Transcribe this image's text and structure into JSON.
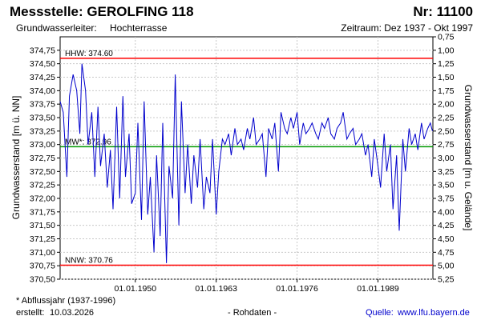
{
  "header": {
    "station": "Messstelle: GEROLFING 118",
    "number": "Nr: 11100",
    "aquifer_label": "Grundwasserleiter:",
    "aquifer": "Hochterrasse",
    "period": "Zeitraum: Dez 1937 - Okt 1997"
  },
  "footer": {
    "note": "* Abflussjahr (1937-1996)",
    "created_label": "erstellt:",
    "created": "10.03.2026",
    "raw": "- Rohdaten -",
    "source_label": "Quelle:",
    "source": "www.lfu.bayern.de"
  },
  "colors": {
    "series": "#0000cc",
    "extreme_lines": "#ff0000",
    "mean_line": "#009900",
    "grid": "#c8c8c8"
  },
  "chart_data": {
    "type": "line",
    "ylabel": "Grundwasserstand [m ü. NN]",
    "y2label": "Grundwasserstand [m u. Gelände]",
    "ylim": [
      370.5,
      375.0
    ],
    "y2lim": [
      0.75,
      5.25
    ],
    "yticks": [
      "374,75",
      "374,50",
      "374,25",
      "374,00",
      "373,75",
      "373,50",
      "373,25",
      "373,00",
      "372,75",
      "372,50",
      "372,25",
      "372,00",
      "371,75",
      "371,50",
      "371,25",
      "371,00",
      "370,75",
      "370,50"
    ],
    "y2ticks": [
      "0,75",
      "1,00",
      "1,25",
      "1,50",
      "1,75",
      "2,00",
      "2,25",
      "2,50",
      "2,75",
      "3,00",
      "3,25",
      "3,50",
      "3,75",
      "4,00",
      "4,25",
      "4,50",
      "4,75",
      "5,00",
      "5,25"
    ],
    "xlim": [
      "1937-12-01",
      "1997-10-31"
    ],
    "xticks": [
      "01.01.1950",
      "01.01.1963",
      "01.01.1976",
      "01.01.1989"
    ],
    "grid": true,
    "hlines": [
      {
        "label": "HHW: 374.60",
        "value": 374.6,
        "color": "#ff0000"
      },
      {
        "label": "MW*: 372.96",
        "value": 372.96,
        "color": "#009900"
      },
      {
        "label": "NNW: 370.76",
        "value": 370.76,
        "color": "#ff0000"
      }
    ],
    "series": [
      {
        "x": [
          "1937-12",
          "1938-06",
          "1939-01",
          "1939-06",
          "1940-01",
          "1940-08",
          "1941-02",
          "1941-06",
          "1942-01",
          "1942-06",
          "1943-01",
          "1943-07",
          "1944-01",
          "1944-06",
          "1945-01",
          "1945-07",
          "1946-01",
          "1946-06",
          "1947-01",
          "1947-07",
          "1948-01",
          "1948-06",
          "1949-01",
          "1949-06",
          "1950-01",
          "1950-06",
          "1951-01",
          "1951-06",
          "1952-01",
          "1952-06",
          "1953-01",
          "1953-06",
          "1954-01",
          "1954-06",
          "1955-01",
          "1955-06",
          "1956-01",
          "1956-06",
          "1957-01",
          "1957-06",
          "1958-01",
          "1958-06",
          "1959-01",
          "1959-06",
          "1960-01",
          "1960-06",
          "1961-01",
          "1961-06",
          "1962-01",
          "1962-06",
          "1963-01",
          "1963-06",
          "1964-01",
          "1964-06",
          "1965-01",
          "1965-06",
          "1966-01",
          "1966-06",
          "1967-01",
          "1967-06",
          "1968-01",
          "1968-06",
          "1969-01",
          "1969-06",
          "1970-01",
          "1970-06",
          "1971-01",
          "1971-06",
          "1972-01",
          "1972-06",
          "1973-01",
          "1973-06",
          "1974-01",
          "1974-06",
          "1975-01",
          "1975-06",
          "1976-01",
          "1976-06",
          "1977-01",
          "1977-06",
          "1978-01",
          "1978-06",
          "1979-01",
          "1979-06",
          "1980-01",
          "1980-06",
          "1981-01",
          "1981-06",
          "1982-01",
          "1982-06",
          "1983-01",
          "1983-06",
          "1984-01",
          "1984-06",
          "1985-01",
          "1985-06",
          "1986-01",
          "1986-06",
          "1987-01",
          "1987-06",
          "1988-01",
          "1988-06",
          "1989-01",
          "1989-06",
          "1990-01",
          "1990-06",
          "1991-01",
          "1991-06",
          "1992-01",
          "1992-06",
          "1993-01",
          "1993-06",
          "1994-01",
          "1994-06",
          "1995-01",
          "1995-06",
          "1996-01",
          "1996-06",
          "1997-01",
          "1997-06",
          "1997-10"
        ],
        "y": [
          373.8,
          373.6,
          372.4,
          373.9,
          374.3,
          374.0,
          373.2,
          374.5,
          374.0,
          373.0,
          373.6,
          372.4,
          373.7,
          372.6,
          373.2,
          372.2,
          372.9,
          371.8,
          373.7,
          372.0,
          373.9,
          372.4,
          373.2,
          371.9,
          372.1,
          373.4,
          371.6,
          373.8,
          371.7,
          372.4,
          371.0,
          372.8,
          371.3,
          373.4,
          370.8,
          372.6,
          372.0,
          374.3,
          371.5,
          373.8,
          372.1,
          373.0,
          371.9,
          372.8,
          372.2,
          373.1,
          371.8,
          372.4,
          372.1,
          373.1,
          371.7,
          372.5,
          373.1,
          373.0,
          373.2,
          372.8,
          373.3,
          373.0,
          373.1,
          372.9,
          373.3,
          373.1,
          373.5,
          373.0,
          373.1,
          373.2,
          372.4,
          373.3,
          373.1,
          373.4,
          372.5,
          373.6,
          373.3,
          373.2,
          373.5,
          373.3,
          373.6,
          373.0,
          373.4,
          373.2,
          373.3,
          373.4,
          373.2,
          373.1,
          373.4,
          373.3,
          373.5,
          373.2,
          373.1,
          373.3,
          373.4,
          373.6,
          373.1,
          373.2,
          373.3,
          373.0,
          373.1,
          373.2,
          372.8,
          373.0,
          372.4,
          373.1,
          372.6,
          372.2,
          373.2,
          372.5,
          373.0,
          371.8,
          372.8,
          371.4,
          373.1,
          372.5,
          373.3,
          373.0,
          373.2,
          372.9,
          373.4,
          373.1,
          373.3,
          373.4,
          373.25
        ]
      }
    ]
  }
}
